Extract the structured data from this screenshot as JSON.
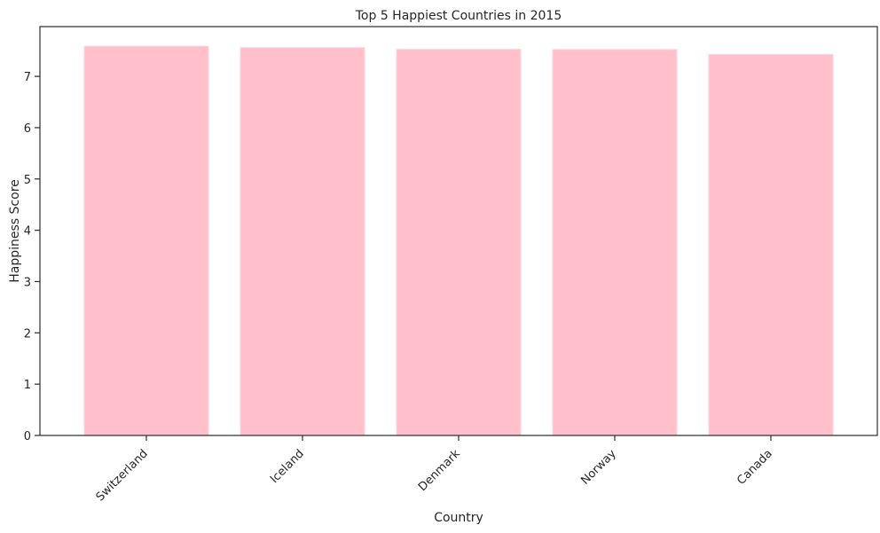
{
  "chart_data": {
    "type": "bar",
    "title": "Top 5 Happiest Countries in 2015",
    "xlabel": "Country",
    "ylabel": "Happiness Score",
    "categories": [
      "Switzerland",
      "Iceland",
      "Denmark",
      "Norway",
      "Canada"
    ],
    "values": [
      7.587,
      7.561,
      7.527,
      7.522,
      7.427
    ],
    "ylim": [
      0,
      7.97
    ],
    "yticks": [
      "0",
      "1",
      "2",
      "3",
      "4",
      "5",
      "6",
      "7"
    ],
    "grid": false,
    "bar_color": "#ffc0cb",
    "bar_edge_color": "#ffd3da",
    "axis_color": "#333333"
  }
}
